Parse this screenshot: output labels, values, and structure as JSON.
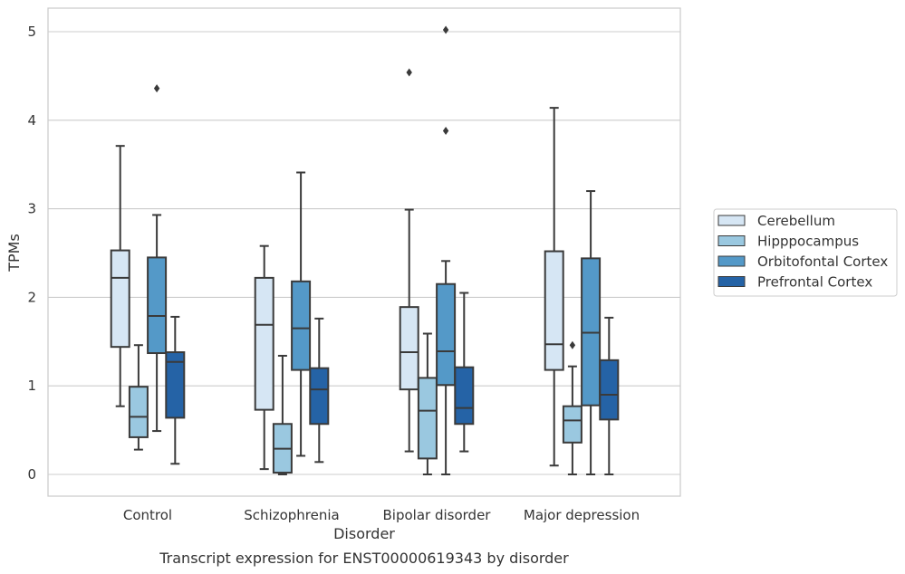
{
  "caption": "Transcript expression for ENST00000619343 by disorder",
  "chart_data": {
    "type": "boxplot",
    "xlabel": "Disorder",
    "ylabel": "TPMs",
    "ylim": [
      -0.25,
      5.27
    ],
    "yticks": [
      0,
      1,
      2,
      3,
      4,
      5
    ],
    "grid": "horizontal",
    "legend_position": "right",
    "categories": [
      "Control",
      "Schizophrenia",
      "Bipolar disorder",
      "Major depression"
    ],
    "series": [
      {
        "name": "Cerebellum",
        "color": "#d6e6f4",
        "boxes": [
          {
            "whisker_low": 0.77,
            "q1": 1.44,
            "median": 2.22,
            "q3": 2.53,
            "whisker_high": 3.71,
            "outliers": []
          },
          {
            "whisker_low": 0.06,
            "q1": 0.73,
            "median": 1.69,
            "q3": 2.22,
            "whisker_high": 2.58,
            "outliers": []
          },
          {
            "whisker_low": 0.26,
            "q1": 0.96,
            "median": 1.38,
            "q3": 1.89,
            "whisker_high": 2.99,
            "outliers": [
              4.54
            ]
          },
          {
            "whisker_low": 0.1,
            "q1": 1.18,
            "median": 1.47,
            "q3": 2.52,
            "whisker_high": 4.14,
            "outliers": []
          }
        ]
      },
      {
        "name": "Hipppocampus",
        "color": "#9ac8e0",
        "boxes": [
          {
            "whisker_low": 0.28,
            "q1": 0.42,
            "median": 0.65,
            "q3": 0.99,
            "whisker_high": 1.46,
            "outliers": []
          },
          {
            "whisker_low": 0.0,
            "q1": 0.02,
            "median": 0.29,
            "q3": 0.57,
            "whisker_high": 1.34,
            "outliers": []
          },
          {
            "whisker_low": 0.0,
            "q1": 0.18,
            "median": 0.72,
            "q3": 1.09,
            "whisker_high": 1.59,
            "outliers": []
          },
          {
            "whisker_low": 0.0,
            "q1": 0.36,
            "median": 0.61,
            "q3": 0.77,
            "whisker_high": 1.22,
            "outliers": [
              1.46
            ]
          }
        ]
      },
      {
        "name": "Orbitofontal Cortex",
        "color": "#5499c8",
        "boxes": [
          {
            "whisker_low": 0.49,
            "q1": 1.37,
            "median": 1.79,
            "q3": 2.45,
            "whisker_high": 2.93,
            "outliers": [
              4.36
            ]
          },
          {
            "whisker_low": 0.21,
            "q1": 1.18,
            "median": 1.65,
            "q3": 2.18,
            "whisker_high": 3.41,
            "outliers": []
          },
          {
            "whisker_low": 0.0,
            "q1": 1.01,
            "median": 1.39,
            "q3": 2.15,
            "whisker_high": 2.41,
            "outliers": [
              3.88,
              5.02
            ]
          },
          {
            "whisker_low": 0.0,
            "q1": 0.78,
            "median": 1.6,
            "q3": 2.44,
            "whisker_high": 3.2,
            "outliers": []
          }
        ]
      },
      {
        "name": "Prefrontal Cortex",
        "color": "#2563a6",
        "boxes": [
          {
            "whisker_low": 0.12,
            "q1": 0.64,
            "median": 1.27,
            "q3": 1.38,
            "whisker_high": 1.78,
            "outliers": []
          },
          {
            "whisker_low": 0.14,
            "q1": 0.57,
            "median": 0.96,
            "q3": 1.2,
            "whisker_high": 1.76,
            "outliers": []
          },
          {
            "whisker_low": 0.26,
            "q1": 0.57,
            "median": 0.75,
            "q3": 1.21,
            "whisker_high": 2.05,
            "outliers": []
          },
          {
            "whisker_low": 0.0,
            "q1": 0.62,
            "median": 0.9,
            "q3": 1.29,
            "whisker_high": 1.77,
            "outliers": []
          }
        ]
      }
    ]
  }
}
